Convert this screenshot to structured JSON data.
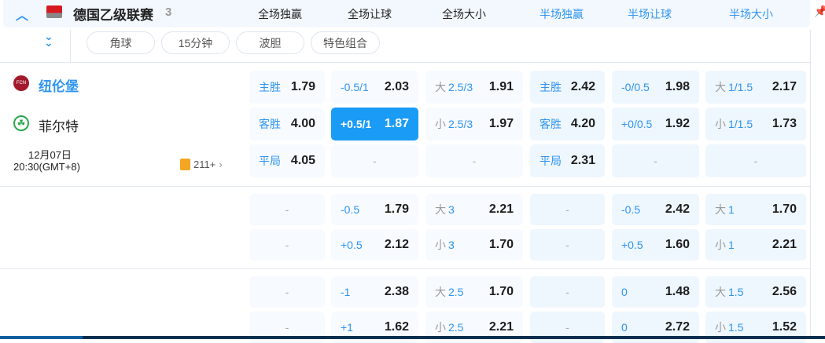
{
  "league": {
    "name": "德国乙级联赛",
    "count": "3"
  },
  "columns": [
    {
      "label": "全场独赢",
      "color": "#222"
    },
    {
      "label": "全场让球",
      "color": "#222"
    },
    {
      "label": "全场大小",
      "color": "#222"
    },
    {
      "label": "半场独赢",
      "color": "#2f95f0"
    },
    {
      "label": "半场让球",
      "color": "#2f95f0"
    },
    {
      "label": "半场大小",
      "color": "#2f95f0"
    }
  ],
  "tabs": [
    "角球",
    "15分钟",
    "波胆",
    "特色组合"
  ],
  "match": {
    "home": "纽伦堡",
    "away": "菲尔特",
    "date": "12月07日",
    "time": "20:30(GMT+8)",
    "markets": "211+"
  },
  "sections": [
    [
      [
        {
          "p": "主胜",
          "o": "1.79"
        },
        {
          "p": "-0.5/1",
          "o": "2.03"
        },
        {
          "k": "大",
          "p": "2.5/3",
          "o": "1.91"
        },
        {
          "p": "主胜",
          "o": "2.42"
        },
        {
          "p": "-0/0.5",
          "o": "1.98"
        },
        {
          "k": "大",
          "p": "1/1.5",
          "o": "2.17"
        }
      ],
      [
        {
          "p": "客胜",
          "o": "4.00"
        },
        {
          "p": "+0.5/1",
          "o": "1.87",
          "sel": true
        },
        {
          "k": "小",
          "p": "2.5/3",
          "o": "1.97"
        },
        {
          "p": "客胜",
          "o": "4.20"
        },
        {
          "p": "+0/0.5",
          "o": "1.92"
        },
        {
          "k": "小",
          "p": "1/1.5",
          "o": "1.73"
        }
      ],
      [
        {
          "p": "平局",
          "o": "4.05"
        },
        {
          "d": "-"
        },
        {
          "d": "-"
        },
        {
          "p": "平局",
          "o": "2.31"
        },
        {
          "d": "-"
        },
        {
          "d": "-"
        }
      ]
    ],
    [
      [
        {
          "d": "-"
        },
        {
          "p": "-0.5",
          "o": "1.79"
        },
        {
          "k": "大",
          "p": "3",
          "o": "2.21"
        },
        {
          "d": "-"
        },
        {
          "p": "-0.5",
          "o": "2.42"
        },
        {
          "k": "大",
          "p": "1",
          "o": "1.70"
        }
      ],
      [
        {
          "d": "-"
        },
        {
          "p": "+0.5",
          "o": "2.12"
        },
        {
          "k": "小",
          "p": "3",
          "o": "1.70"
        },
        {
          "d": "-"
        },
        {
          "p": "+0.5",
          "o": "1.60"
        },
        {
          "k": "小",
          "p": "1",
          "o": "2.21"
        }
      ]
    ],
    [
      [
        {
          "d": "-"
        },
        {
          "p": "-1",
          "o": "2.38"
        },
        {
          "k": "大",
          "p": "2.5",
          "o": "1.70"
        },
        {
          "d": "-"
        },
        {
          "p": "0",
          "o": "1.48"
        },
        {
          "k": "大",
          "p": "1.5",
          "o": "2.56"
        }
      ],
      [
        {
          "d": "-"
        },
        {
          "p": "+1",
          "o": "1.62"
        },
        {
          "k": "小",
          "p": "2.5",
          "o": "2.21"
        },
        {
          "d": "-"
        },
        {
          "p": "0",
          "o": "2.72"
        },
        {
          "k": "小",
          "p": "1.5",
          "o": "1.52"
        }
      ]
    ]
  ],
  "colors": {
    "accent": "#1a9bf5",
    "header_bg": "#f3f8ff",
    "half_bg": "#eef6fe",
    "cell_bg": "#f7faff"
  }
}
